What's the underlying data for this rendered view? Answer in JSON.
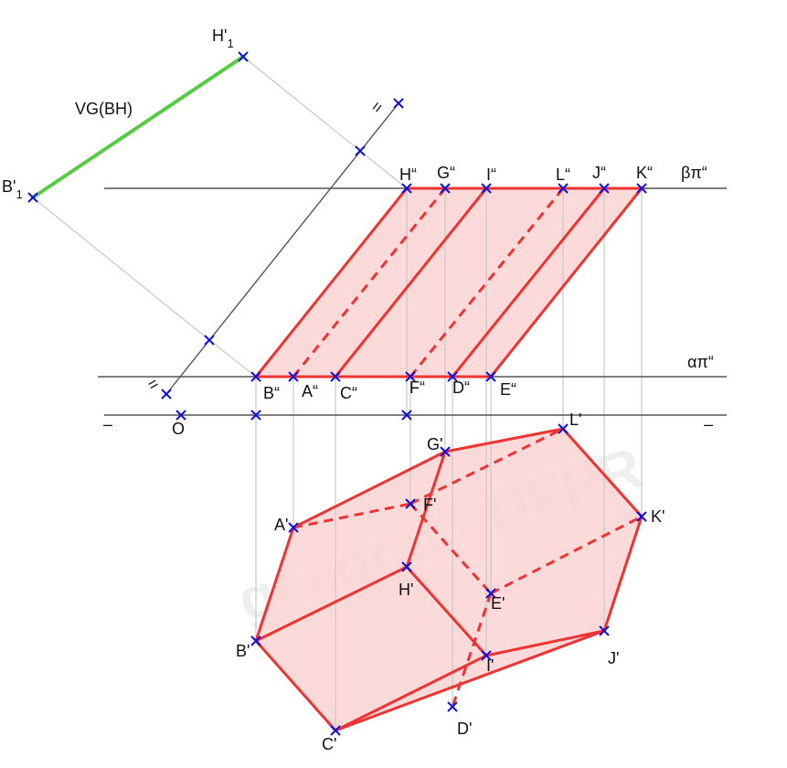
{
  "colors": {
    "ground_line": "#555555",
    "construction": "#c8c8c8",
    "solid_edge": "#ee3333",
    "solid_fill": "#fbd4d4",
    "true_length": "#55cc44",
    "marker": "#1010dd",
    "text": "#111111"
  },
  "watermark": "geegraf - UFPR",
  "lines": {
    "beta_trace": "βπ“",
    "alpha_trace": "απ“",
    "true_length": "VG(BH)",
    "ground_left_mark": "–",
    "ground_right_mark": "–",
    "aux_mark_top": "=",
    "aux_mark_bottom": "="
  },
  "labels": {
    "H1_main": "H'",
    "H1_sub": "1",
    "B1_main": "B'",
    "B1_sub": "1",
    "O": "O",
    "H2": "H“",
    "G2": "G“",
    "I2": "I“",
    "L2": "L“",
    "J2": "J“",
    "K2": "K“",
    "B2": "B“",
    "A2": "A“",
    "C2": "C“",
    "F2": "F“",
    "D2": "D“",
    "E2": "E“",
    "L1": "L'",
    "G1": "G'",
    "F1": "F'",
    "A1": "A'",
    "K1": "K'",
    "H1": "H'",
    "E1": "E'",
    "B1": "B'",
    "I1": "I'",
    "J1": "J'",
    "C1": "C'",
    "D1": "D'"
  }
}
